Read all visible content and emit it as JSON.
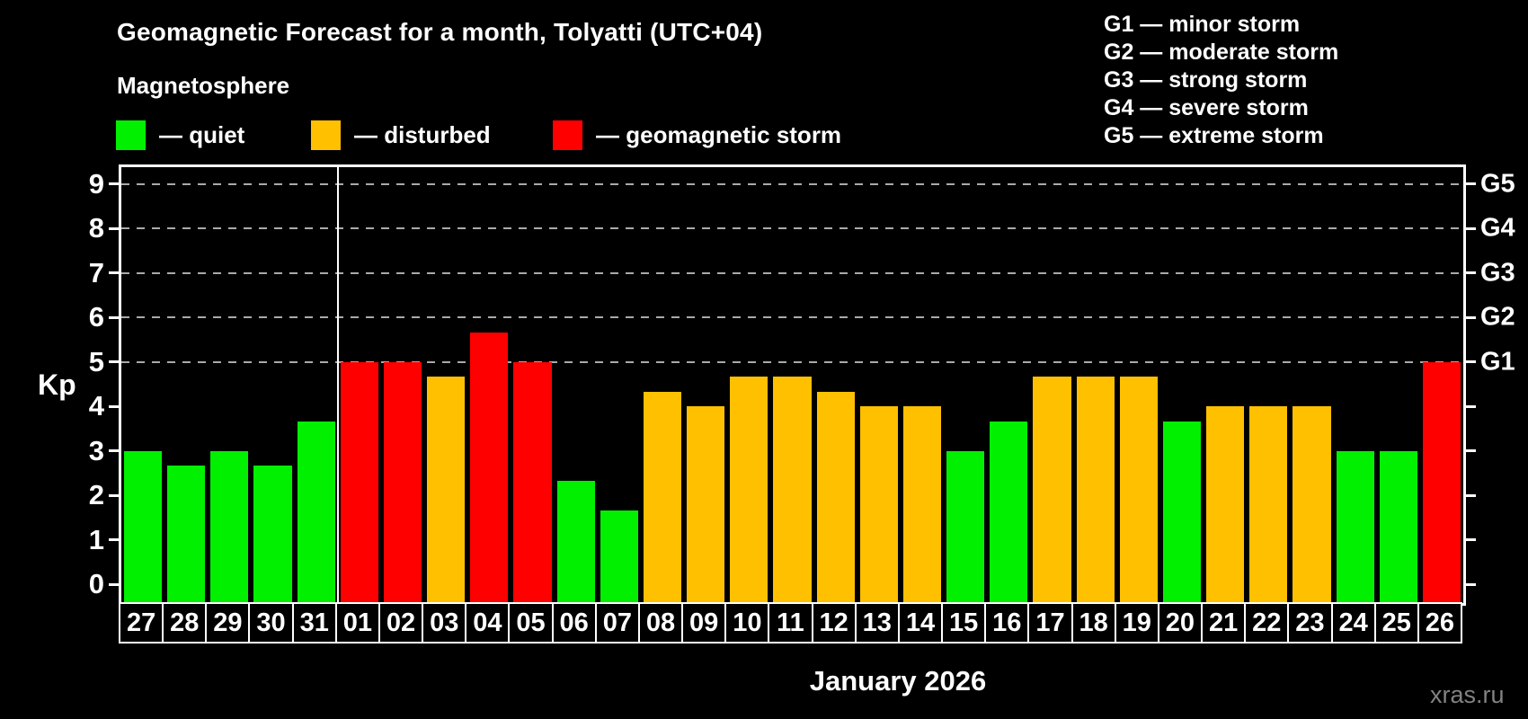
{
  "header": {
    "title": "Geomagnetic Forecast for a month, Tolyatti (UTC+04)",
    "subtitle": "Magnetosphere",
    "legend": [
      {
        "name": "quiet",
        "label": "— quiet",
        "color": "#00f000"
      },
      {
        "name": "disturbed",
        "label": "— disturbed",
        "color": "#ffc000"
      },
      {
        "name": "storm",
        "label": "— geomagnetic storm",
        "color": "#ff0000"
      }
    ],
    "storm_scale_legend": [
      {
        "label": "G1 — minor storm"
      },
      {
        "label": "G2 — moderate storm"
      },
      {
        "label": "G3 — strong storm"
      },
      {
        "label": "G4 — severe storm"
      },
      {
        "label": "G5 — extreme storm"
      }
    ]
  },
  "chart_data": {
    "type": "bar",
    "title": "Geomagnetic Forecast for a month, Tolyatti (UTC+04)",
    "ylabel": "Kp",
    "xlabel": "January 2026",
    "categories": [
      "27",
      "28",
      "29",
      "30",
      "31",
      "01",
      "02",
      "03",
      "04",
      "05",
      "06",
      "07",
      "08",
      "09",
      "10",
      "11",
      "12",
      "13",
      "14",
      "15",
      "16",
      "17",
      "18",
      "19",
      "20",
      "21",
      "22",
      "23",
      "24",
      "25",
      "26"
    ],
    "values": [
      3,
      2.67,
      3,
      2.67,
      3.67,
      5,
      5,
      4.67,
      5.67,
      5,
      2.33,
      1.67,
      4.33,
      4,
      4.67,
      4.67,
      4.33,
      4,
      4,
      3,
      3.67,
      4.67,
      4.67,
      4.67,
      3.67,
      4,
      4,
      4,
      3,
      3,
      5
    ],
    "ylim": [
      0,
      9
    ],
    "yticks": [
      0,
      1,
      2,
      3,
      4,
      5,
      6,
      7,
      8,
      9
    ],
    "gridlines_at_kp": [
      5,
      6,
      7,
      8,
      9
    ],
    "right_axis_labels": [
      {
        "label": "G1",
        "kp": 5
      },
      {
        "label": "G2",
        "kp": 6
      },
      {
        "label": "G3",
        "kp": 7
      },
      {
        "label": "G4",
        "kp": 8
      },
      {
        "label": "G5",
        "kp": 9
      }
    ],
    "color_rule": {
      "quiet_below": 4,
      "disturbed_below": 5
    },
    "colors": {
      "quiet": "#00f000",
      "disturbed": "#ffc000",
      "storm": "#ff0000"
    },
    "month_divider_after_index": 4,
    "legend_position": "top"
  },
  "footer": {
    "xaxis_title": "January 2026",
    "watermark": "xras.ru"
  }
}
